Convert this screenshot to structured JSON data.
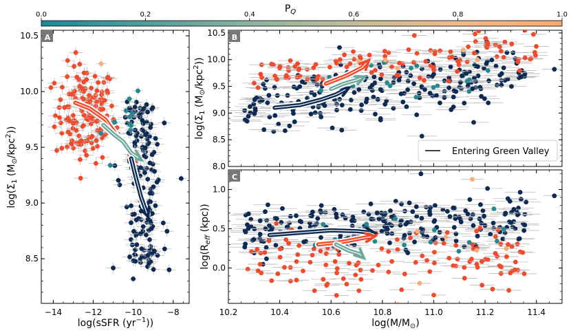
{
  "colorbar": {
    "label": "P",
    "label_sub": "Q",
    "ticks": [
      "0.0",
      "0.2",
      "0.4",
      "0.6",
      "0.8",
      "1.0"
    ],
    "colors": [
      "#1a8a96",
      "#4f9e9b",
      "#8cb3a0",
      "#c2bd98",
      "#f0b88a",
      "#fca86c"
    ]
  },
  "legend": {
    "label": "Entering Green Valley"
  },
  "colors": {
    "navy": "#0d2a52",
    "red": "#f24a2a",
    "teal": "#26898f",
    "peach": "#f4b07a",
    "track_red": "#f24a2a",
    "track_teal": "#6fa89f",
    "track_navy": "#0d2a52"
  },
  "chart_data": [
    {
      "panel": "A",
      "type": "scatter",
      "xlabel": "log(sSFR (yr",
      "xlabel_sup": "−1",
      "xlabel_end": "))",
      "ylabel": "log(Σ",
      "ylabel_sub": "1",
      "ylabel_mid": " (M",
      "ylabel_odot": "⊙",
      "ylabel_end": "/kpc",
      "ylabel_sup": "2",
      "ylabel_close": "))",
      "xlim": [
        -14.6,
        -7.2
      ],
      "ylim": [
        8.1,
        10.55
      ],
      "xticks": [
        -14,
        -12,
        -10,
        -8
      ],
      "xtick_labels": [
        "−14",
        "−12",
        "−10",
        "−8"
      ],
      "yticks": [
        8.5,
        9.0,
        9.5,
        10.0,
        10.5
      ],
      "ytick_labels": [
        "8.5",
        "9.0",
        "9.5",
        "10.0",
        "10.5"
      ],
      "tracks": [
        {
          "name": "red",
          "x": [
            -12.9,
            -12.2,
            -11.4,
            -10.8,
            -10.2,
            -9.9
          ],
          "y": [
            9.9,
            9.85,
            9.75,
            9.6,
            9.5,
            9.4
          ]
        },
        {
          "name": "teal",
          "x": [
            -11.5,
            -11.0,
            -10.5,
            -10.1,
            -9.7
          ],
          "y": [
            9.7,
            9.62,
            9.55,
            9.45,
            9.4
          ]
        },
        {
          "name": "navy",
          "x": [
            -10.1,
            -9.9,
            -9.6,
            -9.4,
            -9.3
          ],
          "y": [
            9.4,
            9.25,
            9.05,
            8.95,
            8.9
          ]
        }
      ]
    },
    {
      "panel": "B",
      "type": "scatter",
      "xlabel": "",
      "ylabel": "log(Σ",
      "ylabel_sub": "1",
      "ylabel_mid": " (M",
      "ylabel_odot": "⊙",
      "ylabel_end": "/kpc",
      "ylabel_sup": "2",
      "ylabel_close": "))",
      "xlim": [
        10.2,
        11.5
      ],
      "ylim": [
        8.0,
        10.55
      ],
      "yticks": [
        8.0,
        8.5,
        9.0,
        9.5,
        10.0,
        10.5
      ],
      "ytick_labels": [
        "8.0",
        "8.5",
        "9.0",
        "9.5",
        "10.0",
        "10.5"
      ],
      "tracks": [
        {
          "name": "navy",
          "x": [
            10.38,
            10.48,
            10.56,
            10.62,
            10.66
          ],
          "y": [
            9.1,
            9.15,
            9.25,
            9.35,
            9.45
          ]
        },
        {
          "name": "teal",
          "x": [
            10.6,
            10.65,
            10.7,
            10.72
          ],
          "y": [
            9.45,
            9.55,
            9.62,
            9.66
          ]
        },
        {
          "name": "red",
          "x": [
            10.58,
            10.66,
            10.72,
            10.74
          ],
          "y": [
            9.55,
            9.7,
            9.85,
            9.95
          ]
        }
      ]
    },
    {
      "panel": "C",
      "type": "scatter",
      "xlabel": "log(M/M",
      "xlabel_odot": "⊙",
      "xlabel_end": ")",
      "ylabel": "log(R",
      "ylabel_sub": "eff",
      "ylabel_end": " (kpc))",
      "xlim": [
        10.2,
        11.5
      ],
      "ylim": [
        -0.45,
        1.25
      ],
      "xticks": [
        10.2,
        10.4,
        10.6,
        10.8,
        11.0,
        11.2,
        11.4
      ],
      "xtick_labels": [
        "10.2",
        "10.4",
        "10.6",
        "10.8",
        "11.0",
        "11.2",
        "11.4"
      ],
      "yticks": [
        0.0,
        0.5,
        1.0
      ],
      "ytick_labels": [
        "0.0",
        "0.5",
        "1.0"
      ],
      "tracks": [
        {
          "name": "navy",
          "x": [
            10.36,
            10.48,
            10.6,
            10.7,
            10.76
          ],
          "y": [
            0.42,
            0.45,
            0.48,
            0.47,
            0.45
          ]
        },
        {
          "name": "red",
          "x": [
            10.55,
            10.64,
            10.72,
            10.76
          ],
          "y": [
            0.3,
            0.33,
            0.38,
            0.4
          ]
        },
        {
          "name": "teal",
          "x": [
            10.62,
            10.67,
            10.71,
            10.72
          ],
          "y": [
            0.3,
            0.22,
            0.18,
            0.15
          ]
        }
      ]
    }
  ]
}
